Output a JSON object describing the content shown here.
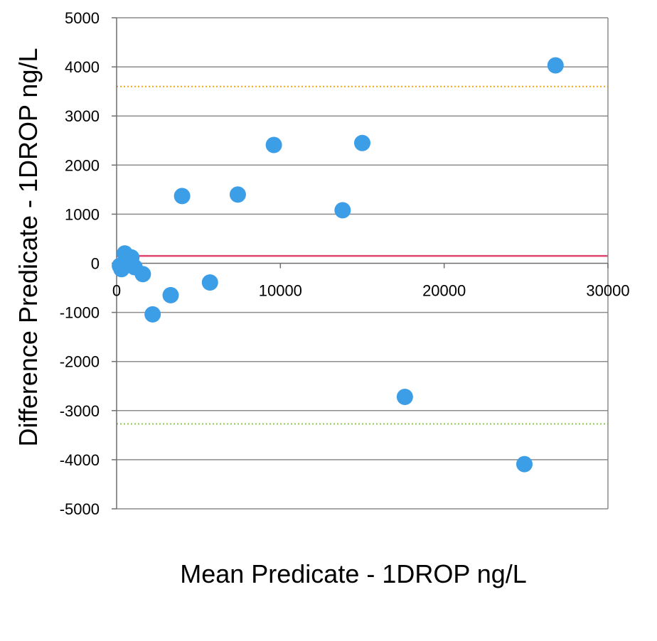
{
  "chart_data": {
    "type": "scatter",
    "title": "",
    "xlabel": "Mean Predicate - 1DROP ng/L",
    "ylabel": "Difference Predicate - 1DROP ng/L",
    "xlim": [
      0,
      30000
    ],
    "ylim": [
      -5000,
      5000
    ],
    "x_ticks": [
      0,
      10000,
      20000,
      30000
    ],
    "x_tick_labels": [
      "0",
      "10000",
      "20000",
      "30000"
    ],
    "y_ticks": [
      -5000,
      -4000,
      -3000,
      -2000,
      -1000,
      0,
      1000,
      2000,
      3000,
      4000,
      5000
    ],
    "y_tick_labels": [
      "-5000",
      "-4000",
      "-3000",
      "-2000",
      "-1000",
      "0",
      "1000",
      "2000",
      "3000",
      "4000",
      "5000"
    ],
    "grid": {
      "horizontal": true,
      "vertical": false
    },
    "legend": "none",
    "series": [
      {
        "color": "#3d9ee8",
        "points": [
          {
            "x": 26800,
            "y": 4030
          },
          {
            "x": 15000,
            "y": 2450
          },
          {
            "x": 9600,
            "y": 2410
          },
          {
            "x": 7400,
            "y": 1400
          },
          {
            "x": 4000,
            "y": 1370
          },
          {
            "x": 13800,
            "y": 1080
          },
          {
            "x": 500,
            "y": 200
          },
          {
            "x": 900,
            "y": 120
          },
          {
            "x": 200,
            "y": -50
          },
          {
            "x": 700,
            "y": -30
          },
          {
            "x": 1100,
            "y": -80
          },
          {
            "x": 300,
            "y": -120
          },
          {
            "x": 1600,
            "y": -220
          },
          {
            "x": 5700,
            "y": -390
          },
          {
            "x": 3300,
            "y": -650
          },
          {
            "x": 2200,
            "y": -1040
          },
          {
            "x": 17600,
            "y": -2720
          },
          {
            "x": 24900,
            "y": -4090
          }
        ]
      }
    ],
    "reference_lines": [
      {
        "y": 150,
        "color": "#e0436b",
        "style": "solid"
      },
      {
        "y": 3600,
        "color": "#f0a818",
        "style": "dotted"
      },
      {
        "y": -3270,
        "color": "#8cc84b",
        "style": "dotted"
      }
    ]
  }
}
